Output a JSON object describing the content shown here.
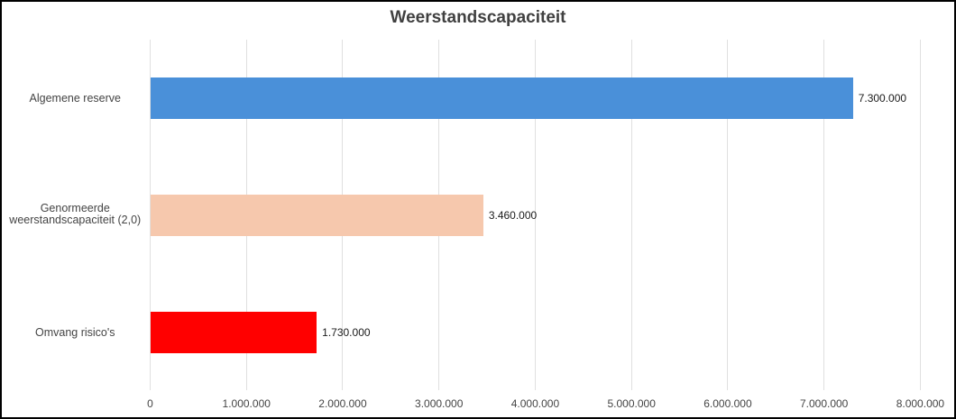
{
  "chart_data": {
    "type": "bar",
    "orientation": "horizontal",
    "title": "Weerstandscapaciteit",
    "categories": [
      "Algemene reserve",
      "Genormeerde weerstandscapaciteit (2,0)",
      "Omvang risico's"
    ],
    "category_label_lines": [
      [
        "Algemene reserve"
      ],
      [
        "Genormeerde",
        "weerstandscapaciteit (2,0)"
      ],
      [
        "Omvang risico's"
      ]
    ],
    "values": [
      7300000,
      3460000,
      1730000
    ],
    "value_labels": [
      "7.300.000",
      "3.460.000",
      "1.730.000"
    ],
    "bar_colors": [
      "#4a90d9",
      "#f6c8ad",
      "#ff0000"
    ],
    "xlim": [
      0,
      8000000
    ],
    "x_tick_values": [
      0,
      1000000,
      2000000,
      3000000,
      4000000,
      5000000,
      6000000,
      7000000,
      8000000
    ],
    "x_tick_labels": [
      "0",
      "1.000.000",
      "2.000.000",
      "3.000.000",
      "4.000.000",
      "5.000.000",
      "6.000.000",
      "7.000.000",
      "8.000.000"
    ],
    "grid": true,
    "legend": "none",
    "xlabel": "",
    "ylabel": ""
  },
  "style": {
    "background": "#ffffff",
    "border_color": "#000000",
    "gridline_color": "#e0e0e0",
    "title_color": "#404040",
    "category_label_color": "#444444",
    "axis_label_color": "#444444",
    "value_label_color": "#1a1a1a"
  }
}
